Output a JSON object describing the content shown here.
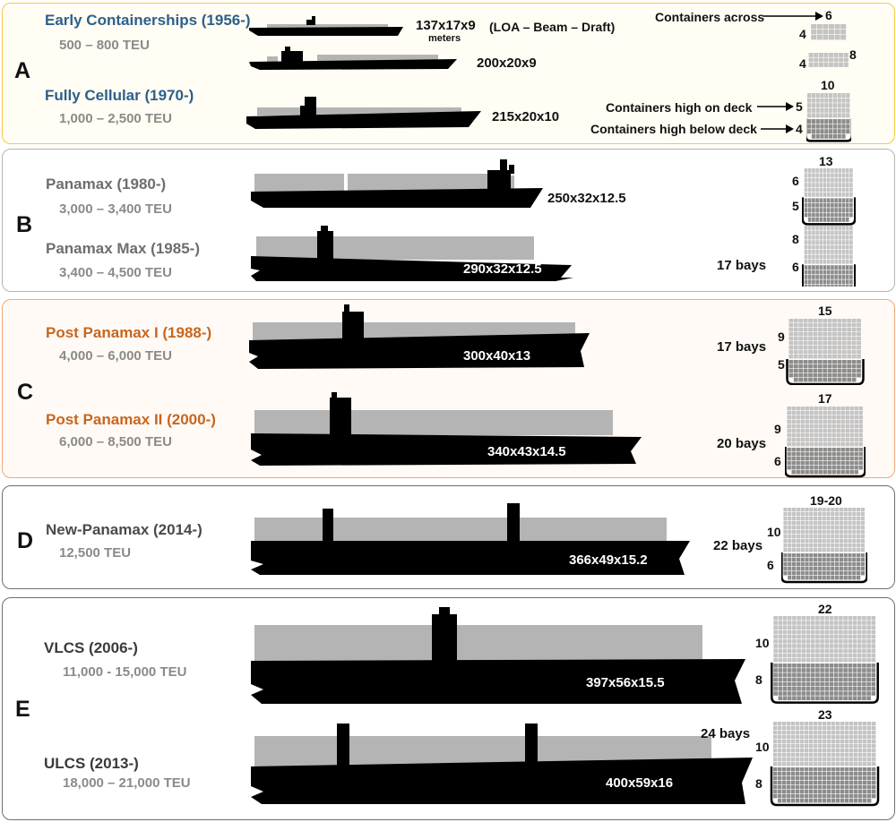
{
  "groups": [
    {
      "letter": "A",
      "colors": {
        "title": "#2e5f8a",
        "border": "#f5c84a",
        "background": "#fffdf4"
      }
    },
    {
      "letter": "B",
      "colors": {
        "title": "#6e6e6e",
        "border": "#b4b4b4",
        "background": "#ffffff"
      }
    },
    {
      "letter": "C",
      "colors": {
        "title": "#c8661e",
        "border": "#f0a878",
        "background": "#fffaf6"
      }
    },
    {
      "letter": "D",
      "colors": {
        "title": "#4a4a4a",
        "border": "#6e6e6e",
        "background": "#ffffff"
      }
    },
    {
      "letter": "E",
      "colors": {
        "title": "#3a3a3a",
        "border": "#6e6e6e",
        "background": "#ffffff"
      }
    }
  ],
  "eras": [
    {
      "name": "Early Containerships (1956-)",
      "teu": "500 – 800 TEU"
    },
    {
      "name": "Fully Cellular (1970-)",
      "teu": "1,000 – 2,500 TEU"
    },
    {
      "name": "Panamax (1980-)",
      "teu": "3,000 – 3,400 TEU"
    },
    {
      "name": "Panamax Max (1985-)",
      "teu": "3,400 – 4,500 TEU"
    },
    {
      "name": "Post Panamax I (1988-)",
      "teu": "4,000 – 6,000 TEU"
    },
    {
      "name": "Post Panamax II (2000-)",
      "teu": "6,000 – 8,500 TEU"
    },
    {
      "name": "New-Panamax (2014-)",
      "teu": "12,500 TEU"
    },
    {
      "name": "VLCS (2006-)",
      "teu": "11,000 - 15,000 TEU"
    },
    {
      "name": "ULCS (2013-)",
      "teu": "18,000 – 21,000 TEU"
    }
  ],
  "ships": [
    {
      "dims": "137x17x9"
    },
    {
      "dims": "200x20x9"
    },
    {
      "dims": "215x20x10"
    },
    {
      "dims": "250x32x12.5"
    },
    {
      "dims": "290x32x12.5",
      "bays": "17 bays"
    },
    {
      "dims": "300x40x13",
      "bays": "17 bays"
    },
    {
      "dims": "340x43x14.5",
      "bays": "20 bays"
    },
    {
      "dims": "366x49x15.2",
      "bays": "22 bays"
    },
    {
      "dims": "397x56x15.5"
    },
    {
      "dims": "400x59x16",
      "bays": "24 bays"
    }
  ],
  "annotations": {
    "meters": "meters",
    "dimension_order": "(LOA – Beam – Draft)",
    "containers_across": "Containers across",
    "containers_high_on_deck": "Containers high on deck",
    "containers_high_below_deck": "Containers high below deck"
  },
  "sections": [
    {
      "across": "6"
    },
    {
      "across": "",
      "below_label": "4"
    },
    {
      "across": "8",
      "below_label": "4"
    },
    {
      "across": "10",
      "on_deck_label": "5",
      "below_label": "4"
    },
    {
      "across": "13",
      "on_deck_label": "6",
      "below_label": "5"
    },
    {
      "across": "",
      "on_deck_label": "8",
      "below_label": "6"
    },
    {
      "across": "15",
      "on_deck_label": "9",
      "below_label": "5"
    },
    {
      "across": "17",
      "on_deck_label": "9",
      "below_label": "6"
    },
    {
      "across": "19-20",
      "on_deck_label": "10",
      "below_label": "6"
    },
    {
      "across": "22",
      "on_deck_label": "10",
      "below_label": "8"
    },
    {
      "across": "23",
      "on_deck_label": "10",
      "below_label": "8"
    }
  ],
  "palette": {
    "hull": "#000000",
    "cargo": "#b4b4b4",
    "deck_cell": "#c4c4c4",
    "hold_cell": "#8c8c8c",
    "grid_line": "#ffffff"
  }
}
